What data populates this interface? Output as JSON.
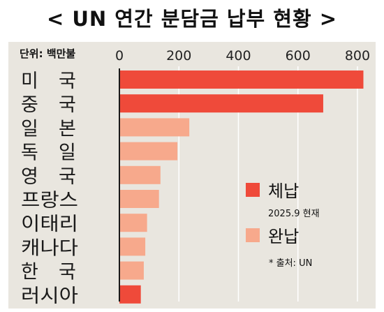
{
  "title": "< UN 연간 분담금 납부 현황 >",
  "unit_label": "단위: 백만불",
  "colors": {
    "background": "#e9e6df",
    "unpaid": "#ef4a3a",
    "paid": "#f7a98c"
  },
  "chart_data": {
    "type": "bar",
    "orientation": "horizontal",
    "categories": [
      "미 국",
      "중 국",
      "일 본",
      "독 일",
      "영 국",
      "프랑스",
      "이태리",
      "캐나다",
      "한 국",
      "러시아"
    ],
    "values": [
      820,
      685,
      235,
      195,
      138,
      133,
      93,
      87,
      82,
      72
    ],
    "status": [
      "unpaid",
      "unpaid",
      "paid",
      "paid",
      "paid",
      "paid",
      "paid",
      "paid",
      "paid",
      "unpaid"
    ],
    "xlim": [
      0,
      840
    ],
    "xticks": [
      0,
      200,
      400,
      600,
      800
    ],
    "grid": true,
    "legend": {
      "position": "bottom-right",
      "entries": [
        {
          "key": "unpaid",
          "label": "체납",
          "note": "2025.9 현재"
        },
        {
          "key": "paid",
          "label": "완납",
          "note": ""
        }
      ]
    },
    "source": "* 출처: UN"
  }
}
